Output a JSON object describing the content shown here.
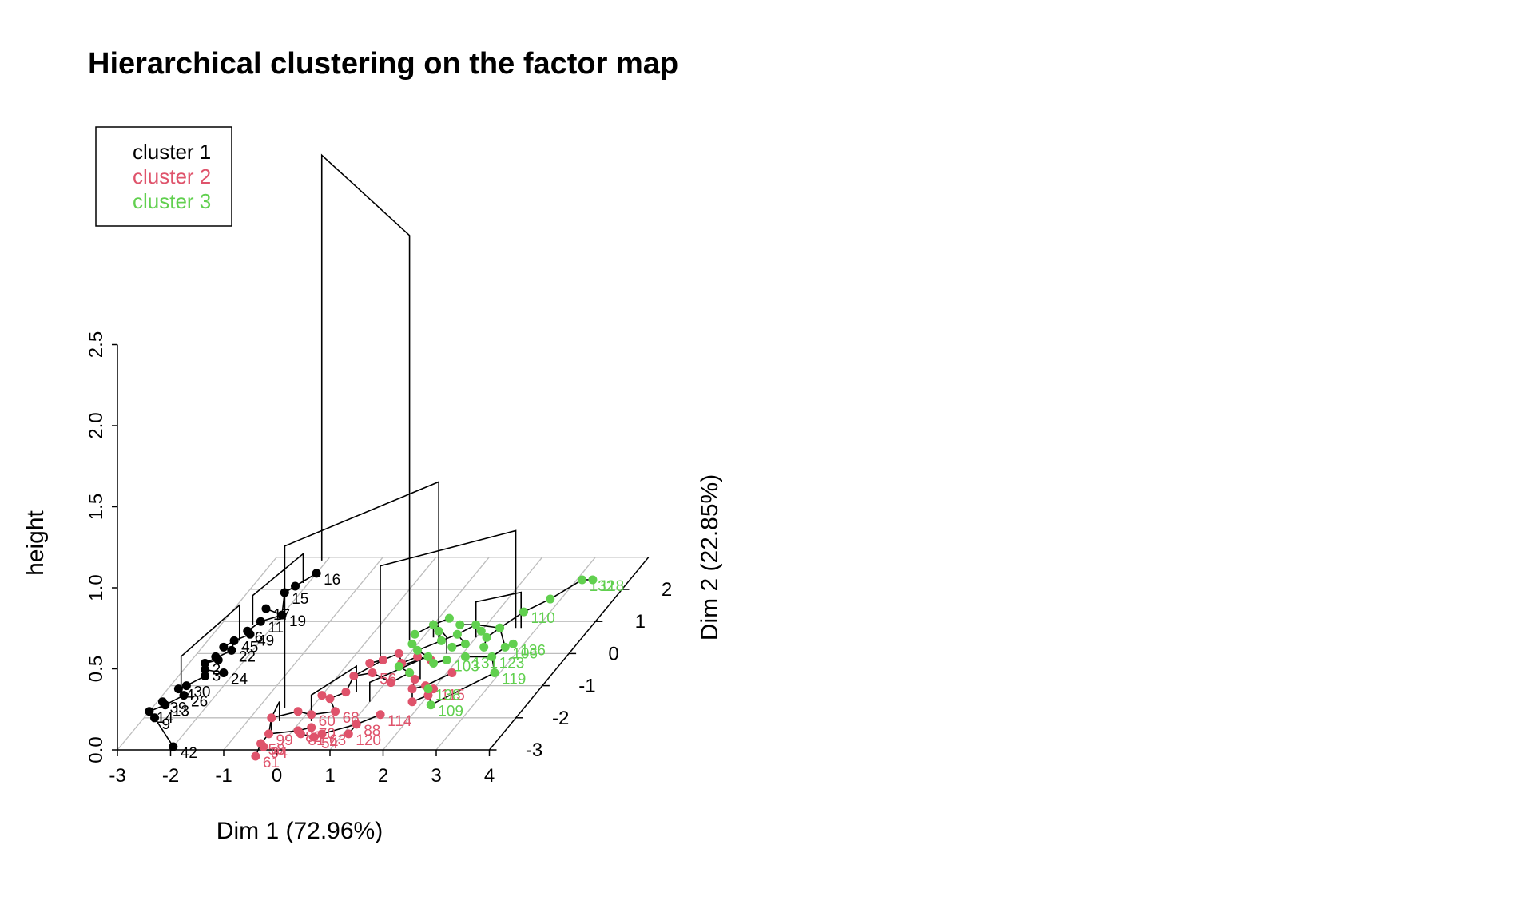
{
  "chart_data": {
    "type": "scatter",
    "title": "Hierarchical clustering on the factor map",
    "xlabel": "Dim 1 (72.96%)",
    "ylabel": "Dim 2 (22.85%)",
    "zlabel": "height",
    "xlim": [
      -3,
      4
    ],
    "ylim": [
      -3,
      3
    ],
    "zlim": [
      0,
      2.5
    ],
    "x_ticks": [
      "-3",
      "-2",
      "-1",
      "0",
      "1",
      "2",
      "3",
      "4"
    ],
    "y_ticks": [
      "-3",
      "-2",
      "-1",
      "0",
      "1",
      "2"
    ],
    "z_ticks": [
      "0.0",
      "0.5",
      "1.0",
      "1.5",
      "2.0",
      "2.5"
    ],
    "grid": true,
    "legend_position": "top-left",
    "legend": [
      {
        "name": "cluster 1",
        "color": "#000000"
      },
      {
        "name": "cluster 2",
        "color": "#DF536B"
      },
      {
        "name": "cluster 3",
        "color": "#61D04F"
      }
    ],
    "series": [
      {
        "name": "cluster 1",
        "color": "#000000",
        "points": [
          {
            "label": "16",
            "x": -2.0,
            "y": 2.5
          },
          {
            "label": "",
            "x": -2.2,
            "y": 2.1
          },
          {
            "label": "15",
            "x": -2.3,
            "y": 1.9
          },
          {
            "label": "19",
            "x": -2.0,
            "y": 1.2
          },
          {
            "label": "17",
            "x": -2.4,
            "y": 1.4
          },
          {
            "label": "11",
            "x": -2.3,
            "y": 1.0
          },
          {
            "label": "6",
            "x": -2.4,
            "y": 0.7
          },
          {
            "label": "49",
            "x": -2.3,
            "y": 0.6
          },
          {
            "label": "45",
            "x": -2.5,
            "y": 0.4
          },
          {
            "label": "22",
            "x": -2.4,
            "y": 0.1
          },
          {
            "label": "",
            "x": -2.6,
            "y": 0.2
          },
          {
            "label": "2",
            "x": -2.7,
            "y": -0.3
          },
          {
            "label": "3",
            "x": -2.6,
            "y": -0.5
          },
          {
            "label": "24",
            "x": -2.2,
            "y": -0.6
          },
          {
            "label": "",
            "x": -2.5,
            "y": -0.2
          },
          {
            "label": "",
            "x": -2.6,
            "y": -0.1
          },
          {
            "label": "",
            "x": -2.5,
            "y": -0.7
          },
          {
            "label": "30",
            "x": -2.7,
            "y": -1.0
          },
          {
            "label": "4",
            "x": -2.8,
            "y": -1.1
          },
          {
            "label": "26",
            "x": -2.6,
            "y": -1.3
          },
          {
            "label": "13",
            "x": -2.8,
            "y": -1.6
          },
          {
            "label": "14",
            "x": -3.0,
            "y": -1.8
          },
          {
            "label": "39",
            "x": -2.9,
            "y": -1.5
          },
          {
            "label": "9",
            "x": -2.8,
            "y": -2.0
          },
          {
            "label": "42",
            "x": -2.0,
            "y": -2.9
          }
        ]
      },
      {
        "name": "cluster 2",
        "color": "#DF536B",
        "points": [
          {
            "label": "61",
            "x": -0.3,
            "y": -3.2
          },
          {
            "label": "58",
            "x": -0.4,
            "y": -2.8
          },
          {
            "label": "94",
            "x": -0.3,
            "y": -2.9
          },
          {
            "label": "99",
            "x": -0.4,
            "y": -2.5
          },
          {
            "label": "",
            "x": -0.6,
            "y": -2.0
          },
          {
            "label": "",
            "x": -0.2,
            "y": -1.8
          },
          {
            "label": "82",
            "x": 0.1,
            "y": -2.4
          },
          {
            "label": "81",
            "x": 0.2,
            "y": -2.5
          },
          {
            "label": "70",
            "x": 0.3,
            "y": -2.3
          },
          {
            "label": "54",
            "x": 0.5,
            "y": -2.6
          },
          {
            "label": "63",
            "x": 0.6,
            "y": -2.5
          },
          {
            "label": "60",
            "x": 0.1,
            "y": -1.9
          },
          {
            "label": "68",
            "x": 0.5,
            "y": -1.8
          },
          {
            "label": "",
            "x": 0.2,
            "y": -1.4
          },
          {
            "label": "",
            "x": 0.4,
            "y": -1.2
          },
          {
            "label": "",
            "x": 0.0,
            "y": -1.3
          },
          {
            "label": "",
            "x": 0.3,
            "y": -0.7
          },
          {
            "label": "",
            "x": 0.6,
            "y": -0.2
          },
          {
            "label": "56",
            "x": 0.6,
            "y": -0.6
          },
          {
            "label": "",
            "x": 0.8,
            "y": 0.0
          },
          {
            "label": "",
            "x": 1.0,
            "y": -0.3
          },
          {
            "label": "",
            "x": 1.2,
            "y": -0.1
          },
          {
            "label": "",
            "x": 1.1,
            "y": -0.9
          },
          {
            "label": "",
            "x": 1.3,
            "y": -0.6
          },
          {
            "label": "",
            "x": 1.5,
            "y": -0.2
          },
          {
            "label": "",
            "x": 1.5,
            "y": -0.8
          },
          {
            "label": "",
            "x": 1.6,
            "y": -1.1
          },
          {
            "label": "",
            "x": 1.8,
            "y": -1.0
          },
          {
            "label": "88",
            "x": 1.1,
            "y": -2.2
          },
          {
            "label": "120",
            "x": 1.1,
            "y": -2.5
          },
          {
            "label": "114",
            "x": 1.4,
            "y": -1.9
          },
          {
            "label": "",
            "x": 1.8,
            "y": -1.5
          },
          {
            "label": "",
            "x": 2.0,
            "y": -1.3
          },
          {
            "label": "",
            "x": 2.1,
            "y": -0.6
          },
          {
            "label": "115",
            "x": 2.0,
            "y": -1.1
          },
          {
            "label": "",
            "x": 0.4,
            "y": -0.3
          }
        ]
      },
      {
        "name": "cluster 3",
        "color": "#61D04F",
        "points": [
          {
            "label": "132",
            "x": 3.1,
            "y": 2.3
          },
          {
            "label": "118",
            "x": 3.3,
            "y": 2.3
          },
          {
            "label": "",
            "x": 2.8,
            "y": 1.7
          },
          {
            "label": "110",
            "x": 2.5,
            "y": 1.3
          },
          {
            "label": "",
            "x": 2.3,
            "y": 0.8
          },
          {
            "label": "106",
            "x": 2.7,
            "y": 0.2
          },
          {
            "label": "136",
            "x": 2.8,
            "y": 0.3
          },
          {
            "label": "123",
            "x": 2.6,
            "y": -0.1
          },
          {
            "label": "119",
            "x": 2.9,
            "y": -0.6
          },
          {
            "label": "131",
            "x": 2.1,
            "y": -0.1
          },
          {
            "label": "",
            "x": 1.8,
            "y": 0.9
          },
          {
            "label": "",
            "x": 1.6,
            "y": 0.6
          },
          {
            "label": "",
            "x": 1.9,
            "y": 0.3
          },
          {
            "label": "",
            "x": 1.7,
            "y": 0.2
          },
          {
            "label": "",
            "x": 1.4,
            "y": 0.4
          },
          {
            "label": "",
            "x": 1.2,
            "y": 0.7
          },
          {
            "label": "",
            "x": 1.0,
            "y": 0.9
          },
          {
            "label": "",
            "x": 0.8,
            "y": 0.6
          },
          {
            "label": "",
            "x": 1.1,
            "y": 0.1
          },
          {
            "label": "",
            "x": 1.4,
            "y": -0.1
          },
          {
            "label": "",
            "x": 1.6,
            "y": -0.3
          },
          {
            "label": "",
            "x": 2.2,
            "y": 0.5
          },
          {
            "label": "",
            "x": 2.0,
            "y": 0.7
          },
          {
            "label": "",
            "x": 0.9,
            "y": 0.3
          },
          {
            "label": "",
            "x": 1.0,
            "y": -0.4
          },
          {
            "label": "",
            "x": 1.3,
            "y": -0.6
          },
          {
            "label": "103",
            "x": 1.8,
            "y": -0.2
          },
          {
            "label": "109",
            "x": 2.2,
            "y": -1.6
          },
          {
            "label": "138",
            "x": 1.9,
            "y": -1.1
          },
          {
            "label": "",
            "x": 2.3,
            "y": 0.2
          },
          {
            "label": "",
            "x": 1.5,
            "y": 0.9
          },
          {
            "label": "",
            "x": 1.2,
            "y": 1.1
          }
        ]
      }
    ],
    "dendrogram": [
      {
        "x1": -2.1,
        "y1": 2.9,
        "x2": 0.8,
        "y2": 0.4,
        "h": 2.5
      },
      {
        "x1": -0.5,
        "y1": -1.7,
        "x2": 1.4,
        "y2": 0.3,
        "h": 1.0
      },
      {
        "x1": 0.6,
        "y1": -0.3,
        "x2": 2.6,
        "y2": 0.8,
        "h": 0.6
      },
      {
        "x1": -2.4,
        "y1": 0.4,
        "x2": -2.7,
        "y2": -1.2,
        "h": 0.22
      },
      {
        "x1": -2.1,
        "y1": 2.2,
        "x2": -2.4,
        "y2": 0.9,
        "h": 0.18
      },
      {
        "x1": 2.0,
        "y1": 0.5,
        "x2": 2.7,
        "y2": 0.8,
        "h": 0.22
      },
      {
        "x1": 0.2,
        "y1": -2.1,
        "x2": 0.6,
        "y2": -1.2,
        "h": 0.16
      },
      {
        "x1": -0.3,
        "y1": -2.6,
        "x2": -0.4,
        "y2": -2.1,
        "h": 0.12
      },
      {
        "x1": 1.0,
        "y1": -1.5,
        "x2": 1.6,
        "y2": -0.8,
        "h": 0.12
      },
      {
        "x1": 1.2,
        "y1": 0.5,
        "x2": 1.7,
        "y2": 0.0,
        "h": 0.1
      }
    ]
  }
}
